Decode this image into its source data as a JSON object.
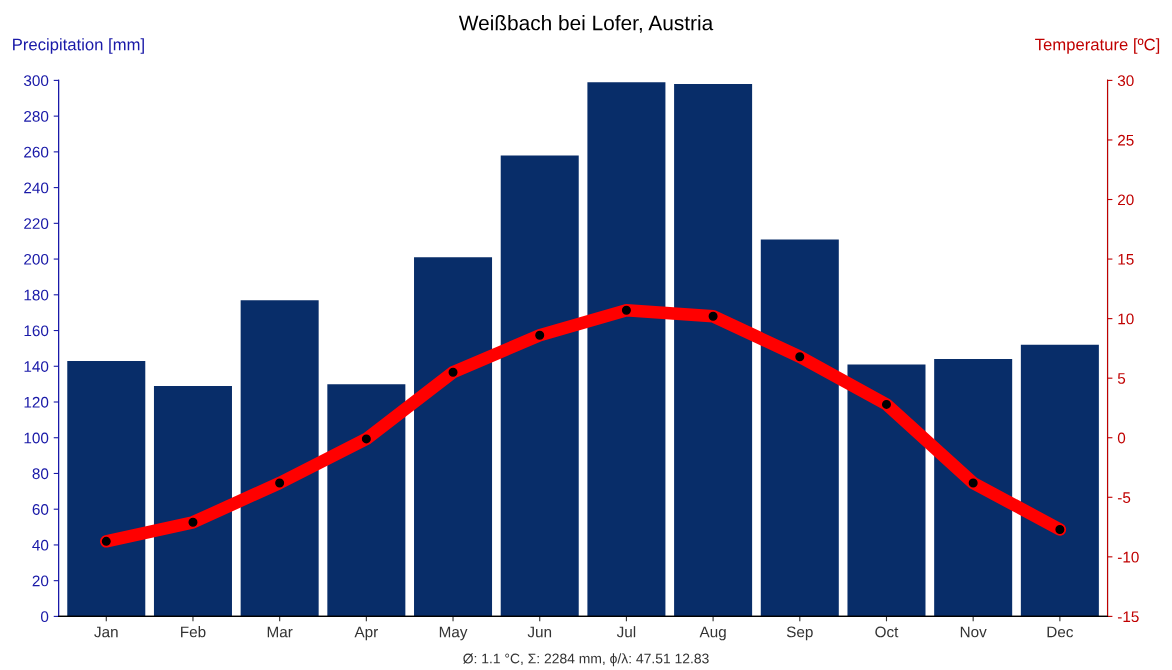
{
  "chart_data": {
    "type": "bar",
    "title": "Weißbach bei Lofer, Austria",
    "categories": [
      "Jan",
      "Feb",
      "Mar",
      "Apr",
      "May",
      "Jun",
      "Jul",
      "Aug",
      "Sep",
      "Oct",
      "Nov",
      "Dec"
    ],
    "ylabel": "Precipitation [mm]",
    "y2label": "Temperature [ºC]",
    "series": [
      {
        "name": null,
        "color": "#082d69",
        "values": [
          143,
          129,
          177,
          130,
          201,
          258,
          299,
          298,
          211,
          141,
          144,
          152
        ]
      },
      {
        "name": null,
        "type": "line",
        "axis": "y2",
        "color": "#ff0000",
        "marker": "circle",
        "line_style": "solid",
        "values": [
          -8.7,
          -7.1,
          -3.8,
          -0.1,
          5.5,
          8.6,
          10.7,
          10.2,
          6.8,
          2.8,
          -3.8,
          -7.7
        ]
      }
    ],
    "ylim": [
      0,
      300
    ],
    "yticks": [
      0,
      20,
      40,
      60,
      80,
      100,
      120,
      140,
      160,
      180,
      200,
      220,
      240,
      260,
      280,
      300
    ],
    "y2lim": [
      -15,
      30
    ],
    "y2ticks": [
      -15,
      -10,
      -5,
      0,
      5,
      10,
      15,
      20,
      25,
      30
    ],
    "grid": false,
    "legend": false,
    "annotations": [
      "Ø: 1.1 °C, Σ: 2284 mm, ϕ/λ: 47.51 12.83"
    ]
  }
}
